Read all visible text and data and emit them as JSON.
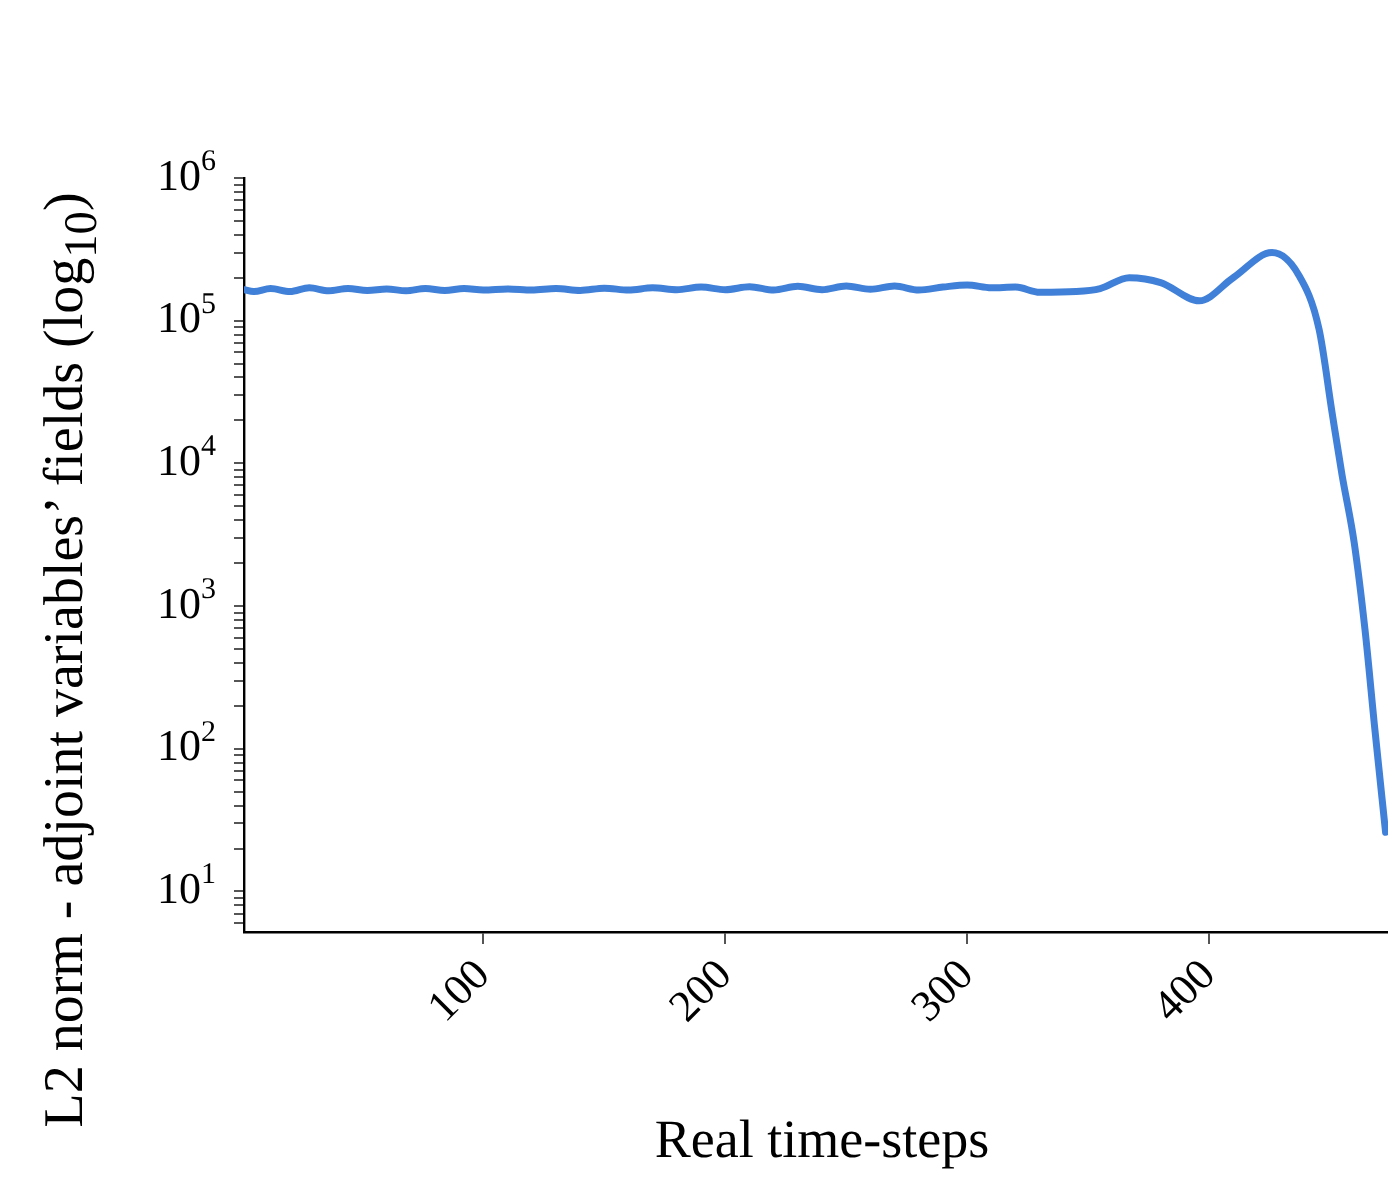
{
  "chart_data": {
    "type": "line",
    "xlabel": "Real time-steps",
    "ylabel": "L2 norm - adjoint variables’ fields (log$_{10}$)",
    "log": "y",
    "grid": false,
    "legend": false,
    "marker": "none",
    "line_style": "solid",
    "xlim": [
      1,
      474
    ],
    "xticks": [
      100,
      200,
      300,
      400
    ],
    "ylim": [
      5.2,
      1000000
    ],
    "yticks": [
      {
        "value": 6,
        "label": null
      },
      {
        "value": 7,
        "label": null
      },
      {
        "value": 8,
        "label": null
      },
      {
        "value": 9,
        "label": null
      },
      {
        "value": 10,
        "label": "10$^{1}$"
      },
      {
        "value": 20,
        "label": null
      },
      {
        "value": 30,
        "label": null
      },
      {
        "value": 40,
        "label": null
      },
      {
        "value": 50,
        "label": null
      },
      {
        "value": 60,
        "label": null
      },
      {
        "value": 70,
        "label": null
      },
      {
        "value": 80,
        "label": null
      },
      {
        "value": 90,
        "label": null
      },
      {
        "value": 100,
        "label": "10$^{2}$"
      },
      {
        "value": 200,
        "label": null
      },
      {
        "value": 300,
        "label": null
      },
      {
        "value": 400,
        "label": null
      },
      {
        "value": 500,
        "label": null
      },
      {
        "value": 600,
        "label": null
      },
      {
        "value": 700,
        "label": null
      },
      {
        "value": 800,
        "label": null
      },
      {
        "value": 900,
        "label": null
      },
      {
        "value": 1000,
        "label": "10$^{3}$"
      },
      {
        "value": 2000,
        "label": null
      },
      {
        "value": 3000,
        "label": null
      },
      {
        "value": 4000,
        "label": null
      },
      {
        "value": 5000,
        "label": null
      },
      {
        "value": 6000,
        "label": null
      },
      {
        "value": 7000,
        "label": null
      },
      {
        "value": 8000,
        "label": null
      },
      {
        "value": 9000,
        "label": null
      },
      {
        "value": 10000,
        "label": "10$^{4}$"
      },
      {
        "value": 20000,
        "label": null
      },
      {
        "value": 30000,
        "label": null
      },
      {
        "value": 40000,
        "label": null
      },
      {
        "value": 50000,
        "label": null
      },
      {
        "value": 60000,
        "label": null
      },
      {
        "value": 70000,
        "label": null
      },
      {
        "value": 80000,
        "label": null
      },
      {
        "value": 90000,
        "label": null
      },
      {
        "value": 100000,
        "label": "10$^{5}$"
      },
      {
        "value": 200000,
        "label": null
      },
      {
        "value": 300000,
        "label": null
      },
      {
        "value": 400000,
        "label": null
      },
      {
        "value": 500000,
        "label": null
      },
      {
        "value": 600000,
        "label": null
      },
      {
        "value": 700000,
        "label": null
      },
      {
        "value": 800000,
        "label": null
      },
      {
        "value": 900000,
        "label": null
      },
      {
        "value": 1000000,
        "label": "10$^{6}$"
      }
    ],
    "series": [
      {
        "color": "#4080d8",
        "x": [
          1,
          5,
          12,
          20,
          28,
          36,
          44,
          52,
          60,
          68,
          76,
          84,
          92,
          100,
          110,
          120,
          130,
          140,
          150,
          160,
          170,
          180,
          190,
          200,
          210,
          220,
          230,
          240,
          250,
          260,
          270,
          280,
          290,
          300,
          310,
          320,
          330,
          345,
          355,
          367,
          380,
          396,
          410,
          426,
          437,
          445.5,
          451,
          455,
          460,
          464.5,
          468.6,
          473
        ],
        "values": [
          165000,
          160000,
          168000,
          160000,
          170000,
          162000,
          168000,
          163000,
          167000,
          162000,
          168000,
          163000,
          168000,
          164000,
          167000,
          164000,
          168000,
          163000,
          169000,
          164000,
          170000,
          165000,
          172000,
          165000,
          173000,
          164000,
          174000,
          165000,
          175000,
          166000,
          175000,
          164000,
          172000,
          178000,
          170000,
          172000,
          158000,
          160000,
          168000,
          200000,
          185000,
          138000,
          200000,
          300000,
          210000,
          87000,
          22000,
          8300,
          2800,
          680,
          135,
          26
        ]
      }
    ]
  }
}
